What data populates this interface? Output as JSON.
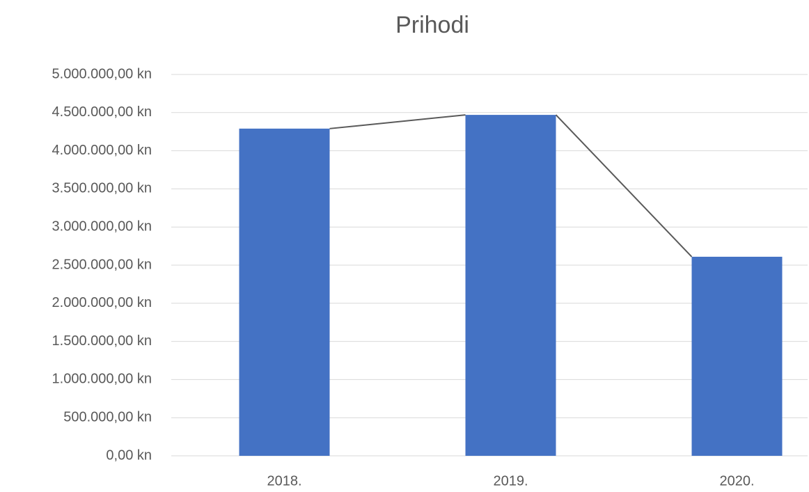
{
  "chart_data": {
    "type": "bar",
    "title": "Prihodi",
    "categories": [
      "2018.",
      "2019.",
      "2020."
    ],
    "values": [
      4290000,
      4470000,
      2610000
    ],
    "color": "#4472c4",
    "series_lines": true,
    "ylim": [
      0,
      5000000
    ],
    "yticks": [
      {
        "value": 0,
        "label": "0,00 kn"
      },
      {
        "value": 500000,
        "label": "500.000,00 kn"
      },
      {
        "value": 1000000,
        "label": "1.000.000,00 kn"
      },
      {
        "value": 1500000,
        "label": "1.500.000,00 kn"
      },
      {
        "value": 2000000,
        "label": "2.000.000,00 kn"
      },
      {
        "value": 2500000,
        "label": "2.500.000,00 kn"
      },
      {
        "value": 3000000,
        "label": "3.000.000,00 kn"
      },
      {
        "value": 3500000,
        "label": "3.500.000,00 kn"
      },
      {
        "value": 4000000,
        "label": "4.000.000,00 kn"
      },
      {
        "value": 4500000,
        "label": "4.500.000,00 kn"
      },
      {
        "value": 5000000,
        "label": "5.000.000,00 kn"
      }
    ],
    "grid": true
  }
}
